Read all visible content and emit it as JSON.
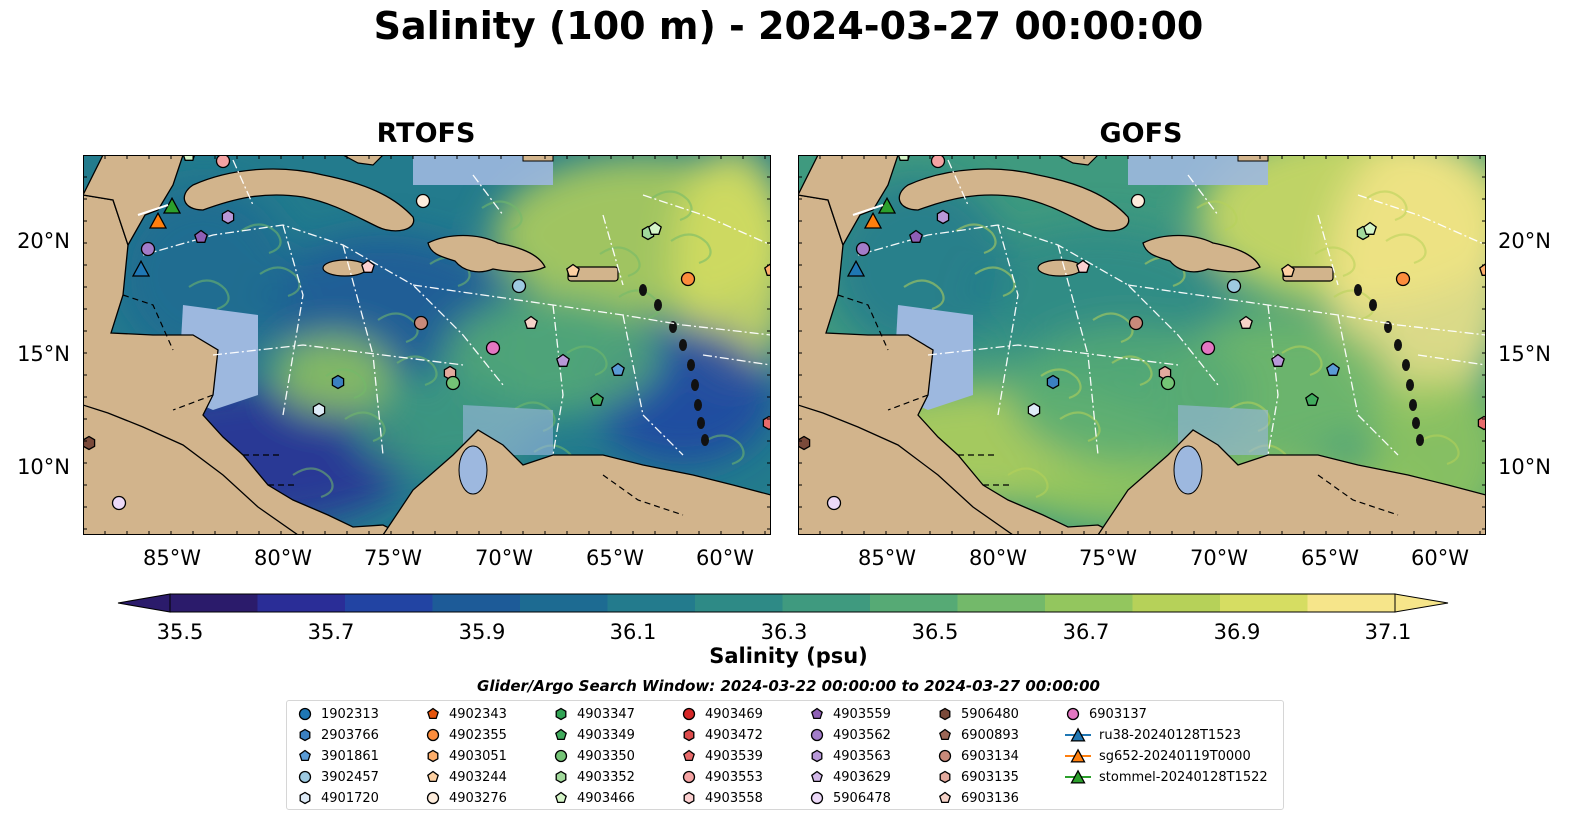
{
  "title": "Salinity (100 m) - 2024-03-27 00:00:00",
  "panels": [
    {
      "title": "RTOFS"
    },
    {
      "title": "GOFS"
    }
  ],
  "axes": {
    "lon_labels": [
      "85°W",
      "80°W",
      "75°W",
      "70°W",
      "65°W",
      "60°W"
    ],
    "lat_labels": [
      "20°N",
      "15°N",
      "10°N"
    ]
  },
  "colorbar": {
    "label": "Salinity (psu)",
    "ticks": [
      "35.5",
      "35.7",
      "35.9",
      "36.1",
      "36.3",
      "36.5",
      "36.7",
      "36.9",
      "37.1"
    ],
    "colors": [
      "#2b1b6b",
      "#2a2d97",
      "#2244a3",
      "#1d5b98",
      "#1d6b92",
      "#237b8d",
      "#2e8a86",
      "#3f9a7f",
      "#56aa75",
      "#73b96a",
      "#93c65e",
      "#b6d159",
      "#d6dd62",
      "#f6e58a"
    ]
  },
  "search_window": "Glider/Argo Search Window: 2024-03-22 00:00:00 to 2024-03-27 00:00:00",
  "legend": [
    {
      "label": "1902313",
      "marker": "circle",
      "color": "#1f77b4"
    },
    {
      "label": "2903766",
      "marker": "hexagon",
      "color": "#3b80c0"
    },
    {
      "label": "3901861",
      "marker": "pentagon",
      "color": "#5a9bd5"
    },
    {
      "label": "3902457",
      "marker": "circle",
      "color": "#9ecae1"
    },
    {
      "label": "4901720",
      "marker": "hexagon",
      "color": "#deebf7"
    },
    {
      "label": "4902343",
      "marker": "pentagon",
      "color": "#e6550d"
    },
    {
      "label": "4902355",
      "marker": "circle",
      "color": "#fd8d3c"
    },
    {
      "label": "4903051",
      "marker": "hexagon",
      "color": "#fdae6b"
    },
    {
      "label": "4903244",
      "marker": "pentagon",
      "color": "#fdd0a2"
    },
    {
      "label": "4903276",
      "marker": "circle",
      "color": "#feeddc"
    },
    {
      "label": "4903347",
      "marker": "hexagon",
      "color": "#31a354"
    },
    {
      "label": "4903349",
      "marker": "pentagon",
      "color": "#41ab5d"
    },
    {
      "label": "4903350",
      "marker": "circle",
      "color": "#74c476"
    },
    {
      "label": "4903352",
      "marker": "hexagon",
      "color": "#a1d99b"
    },
    {
      "label": "4903466",
      "marker": "pentagon",
      "color": "#d5f5c8"
    },
    {
      "label": "4903469",
      "marker": "circle",
      "color": "#d62728"
    },
    {
      "label": "4903472",
      "marker": "hexagon",
      "color": "#de4c4c"
    },
    {
      "label": "4903539",
      "marker": "pentagon",
      "color": "#e86b6b"
    },
    {
      "label": "4903553",
      "marker": "circle",
      "color": "#f4a3a3"
    },
    {
      "label": "4903558",
      "marker": "hexagon",
      "color": "#fcd0d0"
    },
    {
      "label": "4903559",
      "marker": "pentagon",
      "color": "#8e5fb5"
    },
    {
      "label": "4903562",
      "marker": "circle",
      "color": "#a27cc9"
    },
    {
      "label": "4903563",
      "marker": "hexagon",
      "color": "#b898d8"
    },
    {
      "label": "4903629",
      "marker": "pentagon",
      "color": "#d2b8e8"
    },
    {
      "label": "5906478",
      "marker": "circle",
      "color": "#ecd9f8"
    },
    {
      "label": "5906480",
      "marker": "hexagon",
      "color": "#7a4a3a"
    },
    {
      "label": "6900893",
      "marker": "pentagon",
      "color": "#9c6656"
    },
    {
      "label": "6903134",
      "marker": "circle",
      "color": "#c98a7a"
    },
    {
      "label": "6903135",
      "marker": "hexagon",
      "color": "#e3aa9e"
    },
    {
      "label": "6903136",
      "marker": "pentagon",
      "color": "#f6d3c8"
    },
    {
      "label": "6903137",
      "marker": "circle",
      "color": "#e377c2"
    },
    {
      "label": "ru38-20240128T1523",
      "marker": "triangle-line",
      "color": "#1f77b4"
    },
    {
      "label": "sg652-20240119T0000",
      "marker": "triangle-line",
      "color": "#ff7f0e"
    },
    {
      "label": "stommel-20240128T1522",
      "marker": "triangle-line",
      "color": "#2ca02c"
    }
  ]
}
